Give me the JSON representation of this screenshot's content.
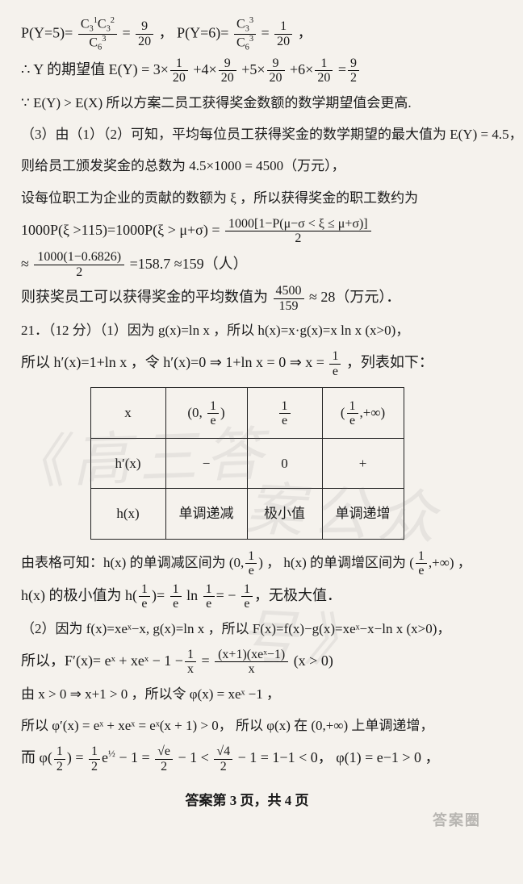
{
  "colors": {
    "bg": "#f5f2ed",
    "text": "#1a1a1a",
    "rule": "#000000",
    "tableBorder": "#222222",
    "watermark": "rgba(120,120,120,0.12)"
  },
  "fontsize": {
    "body": 18,
    "frac": 16,
    "table": 17,
    "watermark": 72
  },
  "watermarks": {
    "wm1": "《高三答",
    "wm2": "案公众号》"
  },
  "lines": {
    "l1a": "P(Y=5)=",
    "l1b": "C",
    "l1c": "C",
    "l1d": "9",
    "l1e": "20",
    "l1f": "，   P(Y=6)=",
    "l1g": "C",
    "l1h": "C",
    "l1i": "1",
    "l1j": "20",
    "l1k": "，",
    "l2a": "∴ Y 的期望值 E(Y) = 3×",
    "l2b": "1",
    "l2c": "20",
    "l2d": "+4×",
    "l2e": "9",
    "l2f": "20",
    "l2g": "+5×",
    "l2h": "9",
    "l2i": "20",
    "l2j": "+6×",
    "l2k": "1",
    "l2l": "20",
    "l2m": "=",
    "l2n": "9",
    "l2o": "2",
    "l3": "∵ E(Y) > E(X) 所以方案二员工获得奖金数额的数学期望值会更高.",
    "l4": "（3）由（1）（2）可知，平均每位员工获得奖金的数学期望的最大值为 E(Y) = 4.5，",
    "l5": "则给员工颁发奖金的总数为 4.5×1000 = 4500（万元），",
    "l6": "设每位职工为企业的贡献的数额为 ξ ，所以获得奖金的职工数约为",
    "l7a": "1000P(ξ >115)=1000P(ξ > μ+σ) =",
    "l7num": "1000[1−P(μ−σ < ξ ≤ μ+σ)]",
    "l7den": "2",
    "l8a": "≈",
    "l8num": "1000(1−0.6826)",
    "l8den": "2",
    "l8b": "=158.7 ≈159（人）",
    "l9a": "则获奖员工可以获得奖金的平均数值为",
    "l9num": "4500",
    "l9den": "159",
    "l9b": "≈ 28（万元）．",
    "l10": "21．（12 分）（1）因为 g(x)=ln x ，所以 h(x)=x·g(x)=x ln x (x>0)，",
    "l11a": "所以 h′(x)=1+ln x ，令 h′(x)=0 ⇒ 1+ln x = 0 ⇒ x =",
    "l11num": "1",
    "l11den": "e",
    "l11b": "，列表如下：",
    "l12a": "由表格可知：h(x) 的单调减区间为",
    "l12open": "(0,",
    "l12num": "1",
    "l12den": "e",
    "l12close": ")",
    "l12b": "，  h(x) 的单调增区间为",
    "l12open2": "(",
    "l12num2": "1",
    "l12den2": "e",
    "l12close2": ",+∞)",
    "l12c": "，",
    "l13a": "h(x) 的极小值为 h(",
    "l13n1": "1",
    "l13d1": "e",
    "l13b": ")=",
    "l13n2": "1",
    "l13d2": "e",
    "l13c": " ln",
    "l13n3": "1",
    "l13d3": "e",
    "l13d": "= −",
    "l13n4": "1",
    "l13d4": "e",
    "l13e": "，无极大值．",
    "l14": "（2）因为 f(x)=xeˣ−x, g(x)=ln x ，所以 F(x)=f(x)−g(x)=xeˣ−x−ln x (x>0)，",
    "l15a": "所以，F′(x)= eˣ + xeˣ − 1 −",
    "l15n": "1",
    "l15d": "x",
    "l15b": " =",
    "l15num": "(x+1)(xeˣ−1)",
    "l15den": "x",
    "l15c": " (x > 0)",
    "l16": "由 x > 0 ⇒ x+1 > 0 ，所以令 φ(x) = xeˣ −1 ，",
    "l17": "所以 φ′(x) = eˣ + xeˣ = eˣ(x + 1) > 0，  所以 φ(x) 在 (0,+∞) 上单调递增，",
    "l18a": "而 φ(",
    "l18n1": "1",
    "l18d1": "2",
    "l18b": ") =",
    "l18n2": "1",
    "l18d2": "2",
    "l18c": "e",
    "l18sup": "½",
    "l18d": " − 1 =",
    "l18n3": "√e",
    "l18d3": "2",
    "l18e": " − 1 <",
    "l18n4": "√4",
    "l18d4": "2",
    "l18f": " − 1 = 1−1 < 0，   φ(1) = e−1 > 0 ，"
  },
  "table": {
    "cols": [
      "x",
      "(0, 1/e)",
      "1/e",
      "(1/e, +∞)"
    ],
    "rows": [
      [
        "h′(x)",
        "−",
        "0",
        "+"
      ],
      [
        "h(x)",
        "单调递减",
        "极小值",
        "单调递增"
      ]
    ],
    "border_color": "#222222",
    "cell_padding": "12px 16px"
  },
  "footer": "答案第 3 页，共 4 页",
  "corner": "答案圈"
}
